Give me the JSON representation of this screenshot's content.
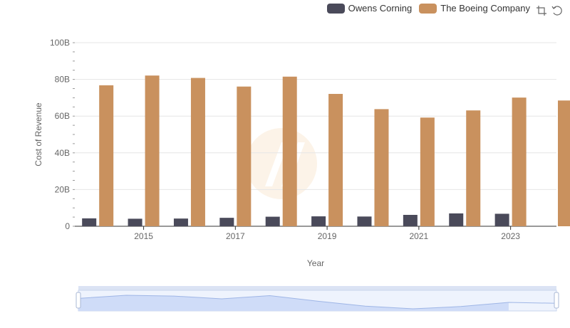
{
  "legend": {
    "series_a": "Owens Corning",
    "series_b": "The Boeing Company"
  },
  "toolbox": {
    "zoom_icon": "zoom-area-icon",
    "restore_icon": "restore-icon"
  },
  "colors": {
    "owens": "#4a4a5a",
    "boeing": "#c9915e",
    "slider_fill": "#dfe8fb",
    "slider_border": "#c9d4ec"
  },
  "chart_data": {
    "type": "bar",
    "categories": [
      "2014",
      "2015",
      "2016",
      "2017",
      "2018",
      "2019",
      "2020",
      "2021",
      "2022",
      "2023",
      "2024"
    ],
    "xticks": [
      "2015",
      "2017",
      "2019",
      "2021",
      "2023"
    ],
    "series": [
      {
        "name": "Owens Corning",
        "values": [
          4.3,
          4.1,
          4.2,
          4.6,
          5.2,
          5.4,
          5.3,
          6.2,
          7.0,
          6.8,
          null
        ]
      },
      {
        "name": "The Boeing Company",
        "values": [
          76.8,
          82.1,
          80.8,
          76.1,
          81.5,
          72.1,
          63.8,
          59.2,
          63.1,
          70.1,
          68.5
        ]
      }
    ],
    "ylim": [
      0,
      100
    ],
    "yticks": [
      "0",
      "20B",
      "40B",
      "60B",
      "80B",
      "100B"
    ],
    "xlabel": "Year",
    "ylabel": "Cost of Revenue",
    "legend_position": "top-right",
    "grid": true
  }
}
